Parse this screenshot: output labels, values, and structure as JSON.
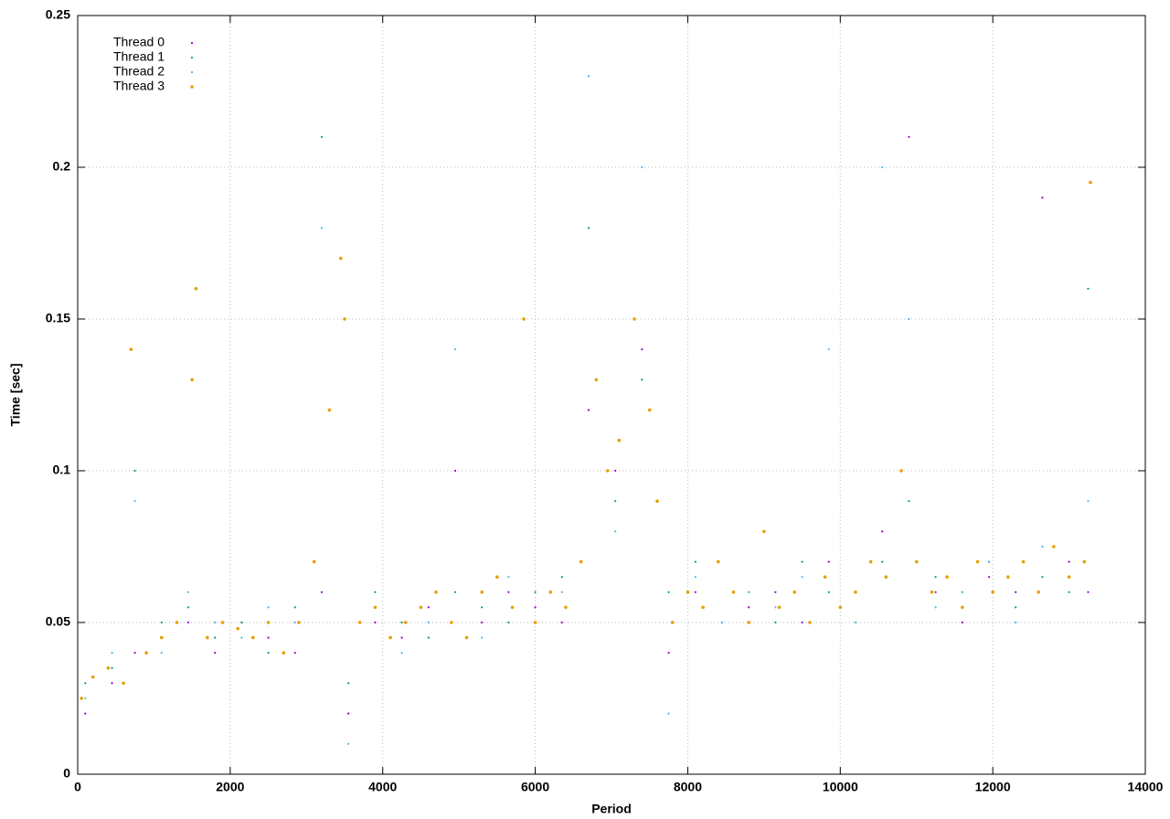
{
  "chart_data": {
    "type": "scatter",
    "xlabel": "Period",
    "ylabel": "Time [sec]",
    "xlim": [
      0,
      14000
    ],
    "ylim": [
      0,
      0.25
    ],
    "xticks": [
      0,
      2000,
      4000,
      6000,
      8000,
      10000,
      12000,
      14000
    ],
    "yticks": [
      0,
      0.05,
      0.1,
      0.15,
      0.2,
      0.25
    ],
    "grid": true,
    "legend": "top-left",
    "series": [
      {
        "name": "Thread 0",
        "color": "#9400d3",
        "x": [
          100,
          450,
          750,
          1100,
          1450,
          1800,
          2150,
          2500,
          2850,
          3200,
          3550,
          3900,
          4250,
          4600,
          4950,
          5300,
          5650,
          6000,
          6350,
          6700,
          7050,
          7400,
          7750,
          8100,
          8450,
          8800,
          9150,
          9500,
          9850,
          10200,
          10550,
          10900,
          11250,
          11600,
          11950,
          12300,
          12650,
          13000,
          13250
        ],
        "values": [
          0.02,
          0.03,
          0.04,
          0.045,
          0.05,
          0.04,
          0.05,
          0.045,
          0.04,
          0.06,
          0.02,
          0.05,
          0.045,
          0.055,
          0.1,
          0.05,
          0.06,
          0.055,
          0.05,
          0.12,
          0.1,
          0.14,
          0.04,
          0.06,
          0.05,
          0.055,
          0.06,
          0.05,
          0.07,
          0.06,
          0.08,
          0.21,
          0.06,
          0.05,
          0.065,
          0.06,
          0.19,
          0.07,
          0.06
        ]
      },
      {
        "name": "Thread 1",
        "color": "#009e73",
        "x": [
          100,
          450,
          750,
          1100,
          1450,
          1800,
          2150,
          2500,
          2850,
          3200,
          3550,
          3900,
          4250,
          4600,
          4950,
          5300,
          5650,
          6000,
          6350,
          6700,
          7050,
          7400,
          7750,
          8100,
          8450,
          8800,
          9150,
          9500,
          9850,
          10200,
          10550,
          10900,
          11250,
          11600,
          11950,
          12300,
          12650,
          13000,
          13250
        ],
        "values": [
          0.03,
          0.035,
          0.1,
          0.05,
          0.055,
          0.045,
          0.05,
          0.04,
          0.055,
          0.21,
          0.03,
          0.06,
          0.05,
          0.045,
          0.06,
          0.055,
          0.05,
          0.06,
          0.065,
          0.18,
          0.09,
          0.13,
          0.06,
          0.07,
          0.05,
          0.06,
          0.05,
          0.07,
          0.06,
          0.05,
          0.07,
          0.09,
          0.065,
          0.06,
          0.07,
          0.055,
          0.065,
          0.06,
          0.16
        ]
      },
      {
        "name": "Thread 2",
        "color": "#56b4e9",
        "x": [
          100,
          450,
          750,
          1100,
          1450,
          1800,
          2150,
          2500,
          2850,
          3200,
          3550,
          3900,
          4250,
          4600,
          4950,
          5300,
          5650,
          6000,
          6350,
          6700,
          7050,
          7400,
          7750,
          8100,
          8450,
          8800,
          9150,
          9500,
          9850,
          10200,
          10550,
          10900,
          11250,
          11600,
          11950,
          12300,
          12650,
          13000,
          13250
        ],
        "values": [
          0.025,
          0.04,
          0.09,
          0.04,
          0.06,
          0.05,
          0.045,
          0.055,
          0.05,
          0.18,
          0.01,
          0.055,
          0.04,
          0.05,
          0.14,
          0.045,
          0.065,
          0.05,
          0.06,
          0.23,
          0.08,
          0.2,
          0.02,
          0.065,
          0.05,
          0.06,
          0.055,
          0.065,
          0.14,
          0.05,
          0.2,
          0.15,
          0.055,
          0.06,
          0.07,
          0.05,
          0.075,
          0.065,
          0.09
        ]
      },
      {
        "name": "Thread 3",
        "color": "#e69f00",
        "x": [
          50,
          200,
          400,
          600,
          700,
          900,
          1100,
          1300,
          1500,
          1550,
          1700,
          1900,
          2100,
          2300,
          2500,
          2700,
          2900,
          3100,
          3300,
          3450,
          3500,
          3700,
          3900,
          4100,
          4300,
          4500,
          4700,
          4900,
          5100,
          5300,
          5500,
          5700,
          5850,
          6000,
          6200,
          6400,
          6600,
          6800,
          6950,
          7100,
          7300,
          7500,
          7600,
          7800,
          8000,
          8200,
          8400,
          8600,
          8800,
          9000,
          9200,
          9400,
          9600,
          9800,
          10000,
          10200,
          10400,
          10600,
          10800,
          11000,
          11200,
          11400,
          11600,
          11800,
          12000,
          12200,
          12400,
          12600,
          12800,
          13000,
          13200,
          13280
        ],
        "values": [
          0.025,
          0.032,
          0.035,
          0.03,
          0.14,
          0.04,
          0.045,
          0.05,
          0.13,
          0.16,
          0.045,
          0.05,
          0.048,
          0.045,
          0.05,
          0.04,
          0.05,
          0.07,
          0.12,
          0.17,
          0.15,
          0.05,
          0.055,
          0.045,
          0.05,
          0.055,
          0.06,
          0.05,
          0.045,
          0.06,
          0.065,
          0.055,
          0.15,
          0.05,
          0.06,
          0.055,
          0.07,
          0.13,
          0.1,
          0.11,
          0.15,
          0.12,
          0.09,
          0.05,
          0.06,
          0.055,
          0.07,
          0.06,
          0.05,
          0.08,
          0.055,
          0.06,
          0.05,
          0.065,
          0.055,
          0.06,
          0.07,
          0.065,
          0.1,
          0.07,
          0.06,
          0.065,
          0.055,
          0.07,
          0.06,
          0.065,
          0.07,
          0.06,
          0.075,
          0.065,
          0.07,
          0.195
        ]
      }
    ]
  }
}
